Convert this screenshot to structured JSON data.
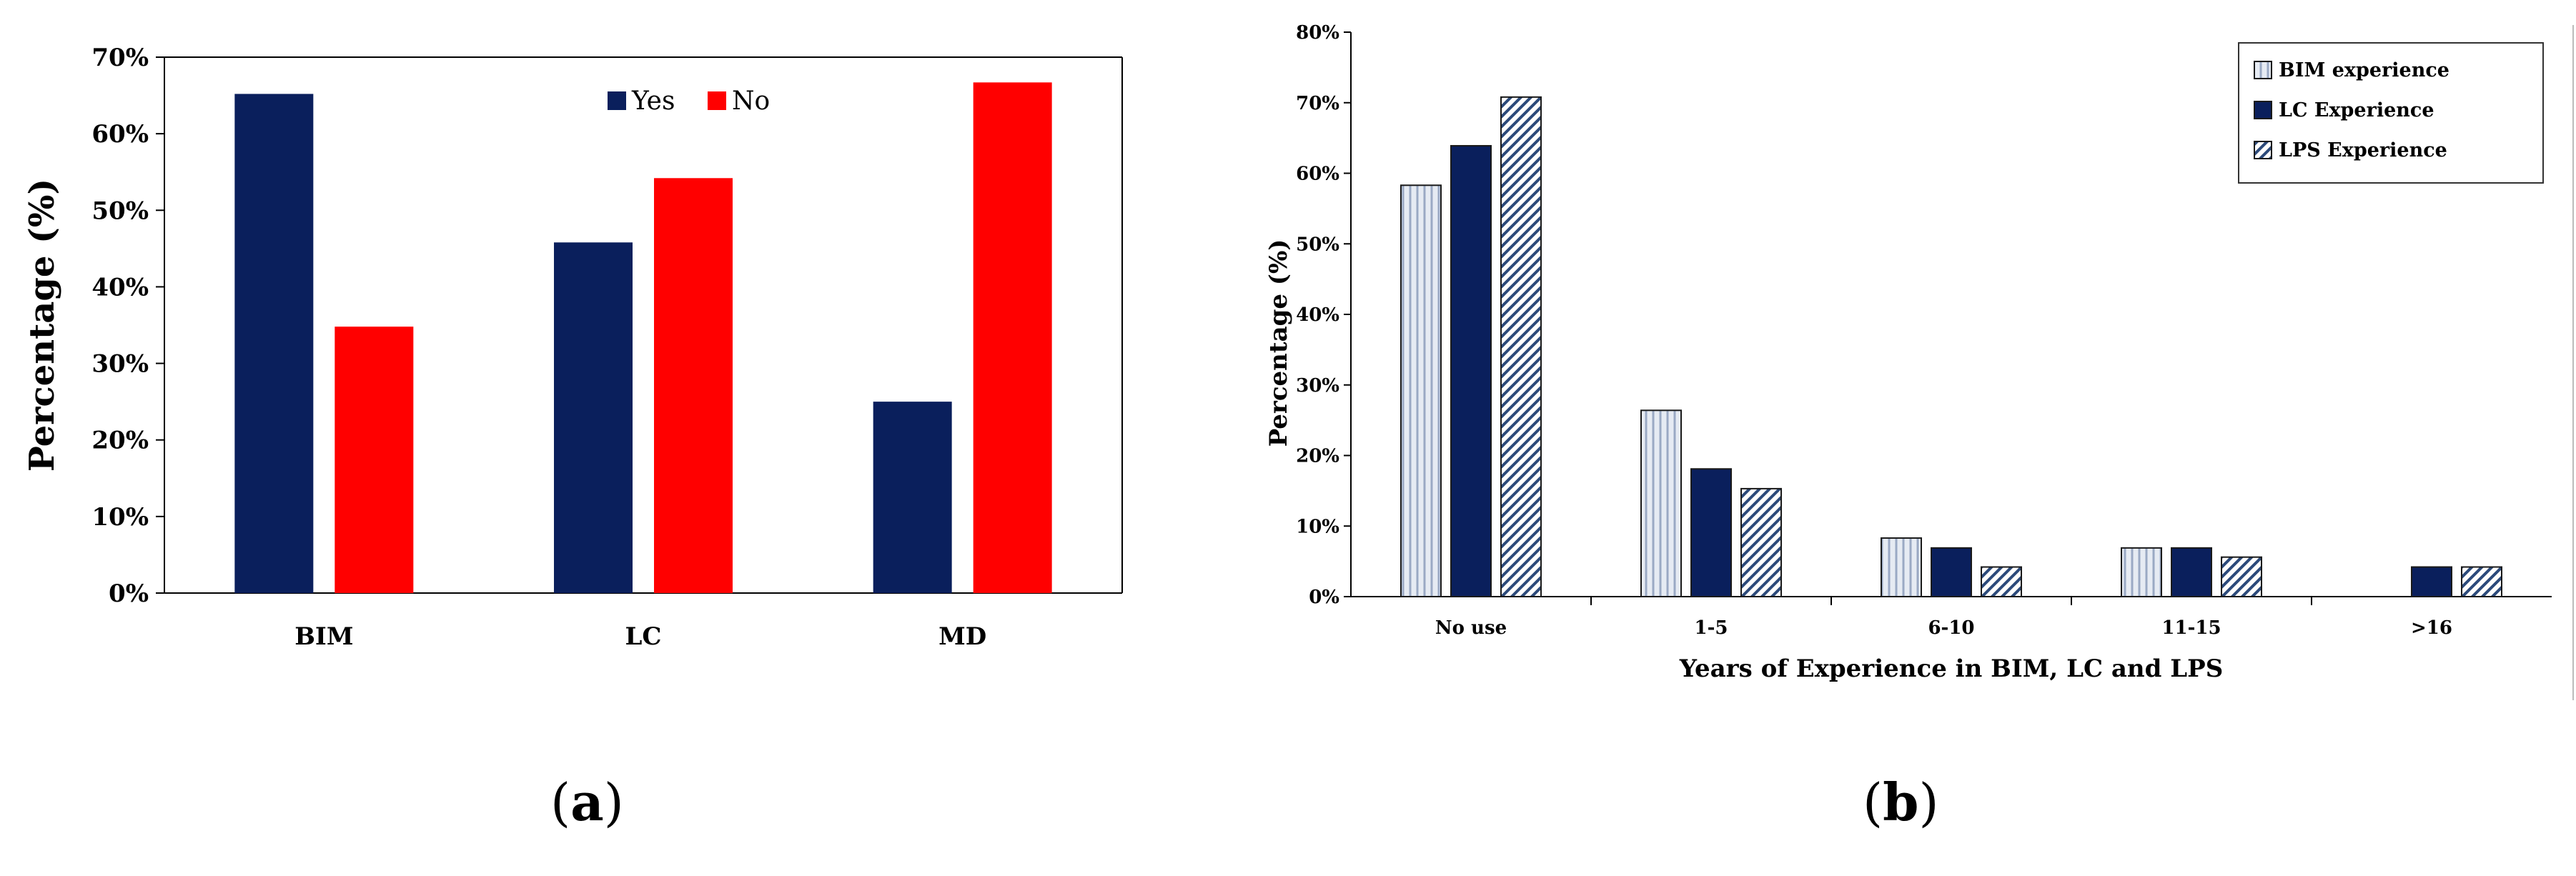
{
  "panels": {
    "a": {
      "caption_open": "(",
      "caption_letter": "a",
      "caption_close": ")"
    },
    "b": {
      "caption_open": "(",
      "caption_letter": "b",
      "caption_close": ")"
    }
  },
  "chart_data": [
    {
      "type": "bar",
      "title": "",
      "xlabel": "",
      "ylabel": "Percentage (%)",
      "categories": [
        "BIM",
        "LC",
        "MD"
      ],
      "series": [
        {
          "name": "Yes",
          "values": [
            65.2,
            45.8,
            25.0
          ],
          "color": "#0a1f5c"
        },
        {
          "name": "No",
          "values": [
            34.8,
            54.2,
            66.7
          ],
          "color": "#ff0000"
        }
      ],
      "ylim": [
        0,
        70
      ],
      "yticks": [
        "0%",
        "10%",
        "20%",
        "30%",
        "40%",
        "50%",
        "60%",
        "70%"
      ],
      "legend_position": "top-center",
      "grid": false
    },
    {
      "type": "bar",
      "title": "",
      "xlabel": "Years of Experience in BIM, LC and LPS",
      "ylabel": "Percentage (%)",
      "categories": [
        "No use",
        "1-5",
        "6-10",
        "11-15",
        ">16"
      ],
      "series": [
        {
          "name": "BIM experience",
          "values": [
            58.3,
            26.4,
            8.3,
            6.9,
            0
          ],
          "color": "#c9d3e4",
          "pattern": "vertical-lines"
        },
        {
          "name": "LC Experience",
          "values": [
            63.9,
            18.1,
            6.9,
            6.9,
            4.2
          ],
          "color": "#0a1f5c",
          "pattern": "solid"
        },
        {
          "name": "LPS Experience",
          "values": [
            70.8,
            15.3,
            4.2,
            5.6,
            4.2
          ],
          "color": "#2c4a7a",
          "pattern": "diagonal-hatch"
        }
      ],
      "ylim": [
        0,
        80
      ],
      "yticks": [
        "0%",
        "10%",
        "20%",
        "30%",
        "40%",
        "50%",
        "60%",
        "70%",
        "80%"
      ],
      "legend_position": "top-right",
      "grid": false
    }
  ]
}
